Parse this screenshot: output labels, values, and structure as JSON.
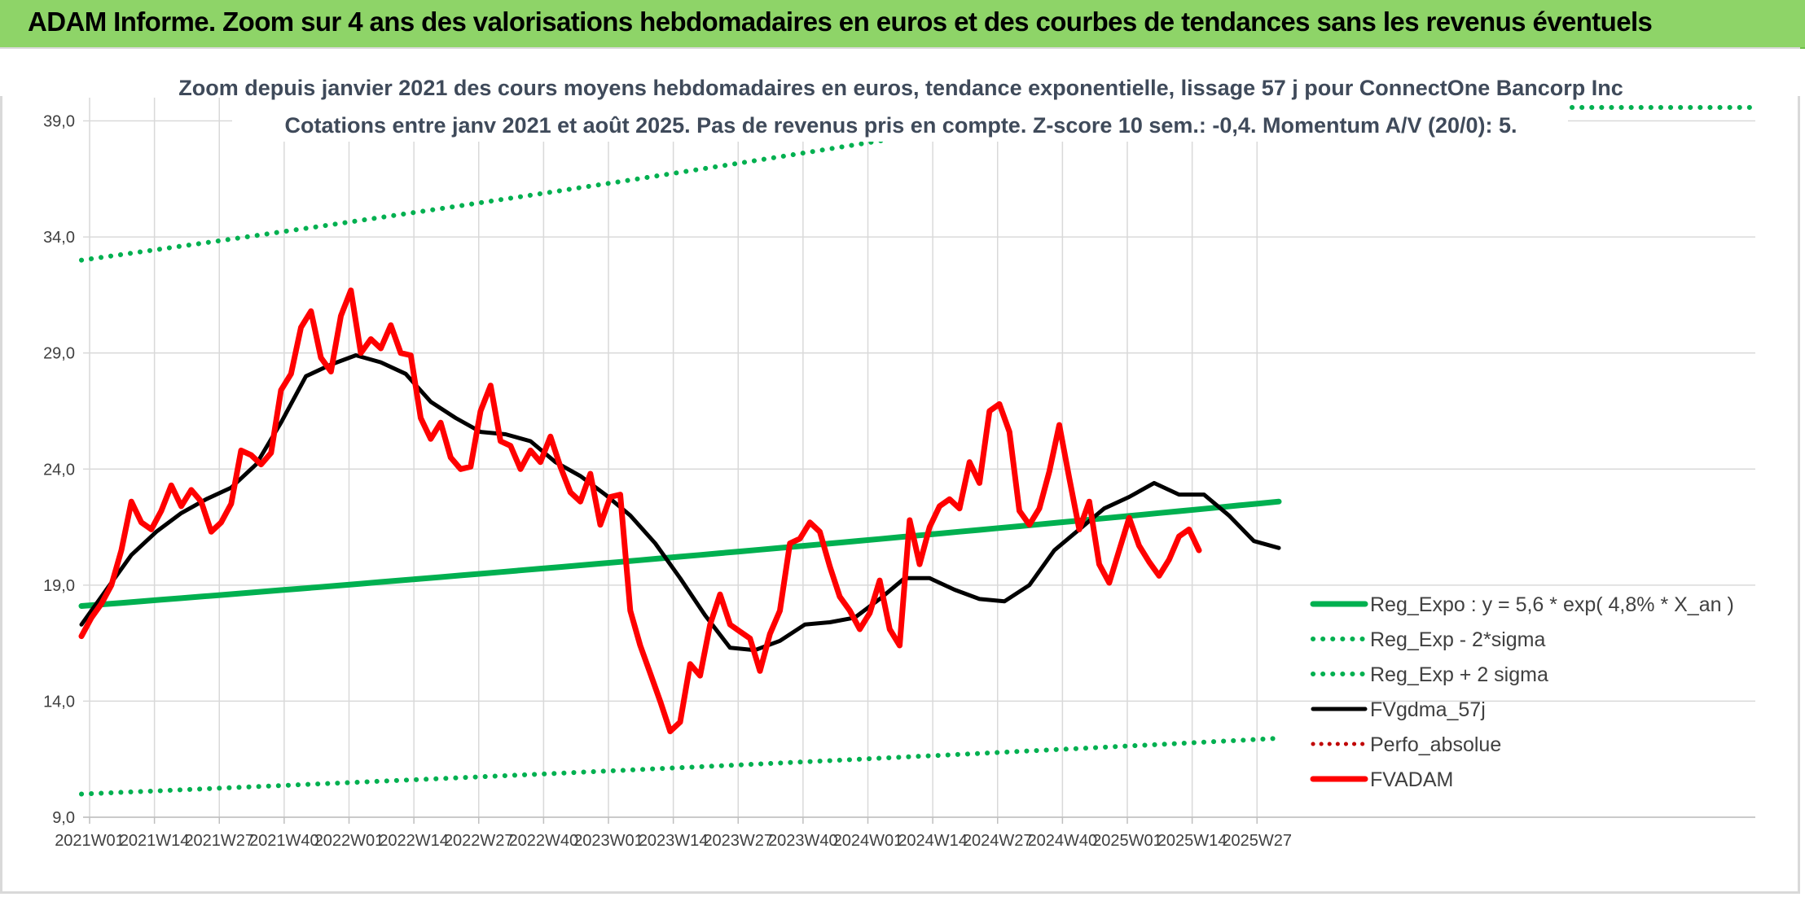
{
  "banner": {
    "title": "ADAM Informe. Zoom sur 4 ans des valorisations hebdomadaires en euros et des courbes de tendances sans les revenus éventuels"
  },
  "chart_data": {
    "type": "line",
    "title_line1": "Zoom depuis janvier 2021 des cours moyens hebdomadaires en euros, tendance exponentielle, lissage 57 j pour ConnectOne Bancorp Inc",
    "title_line2": "Cotations entre janv 2021 et août 2025. Pas de revenus pris en compte. Z-score 10 sem.: -0,4. Momentum A/V (20/0): 5.",
    "ylim": [
      9.0,
      40.0
    ],
    "y_ticks": [
      "9,0",
      "14,0",
      "19,0",
      "24,0",
      "29,0",
      "34,0",
      "39,0"
    ],
    "y_tick_values": [
      9,
      14,
      19,
      24,
      29,
      34,
      39
    ],
    "x_ticks": [
      "2021W01",
      "2021W14",
      "2021W27",
      "2021W40",
      "2022W01",
      "2022W14",
      "2022W27",
      "2022W40",
      "2023W01",
      "2023W14",
      "2023W27",
      "2023W40",
      "2024W01",
      "2024W14",
      "2024W27",
      "2024W40",
      "2025W01",
      "2025W14",
      "2025W27"
    ],
    "grid": true,
    "legend_position": "bottom-right",
    "colors": {
      "green": "#00b050",
      "black": "#000000",
      "red": "#ff0000",
      "red_dotted": "#c00000"
    },
    "legend": [
      {
        "label": "Reg_Expo : y = 5,6 * exp( 4,8% *  X_an )",
        "style": "solid-green"
      },
      {
        "label": "Reg_Exp - 2*sigma",
        "style": "dotted-green"
      },
      {
        "label": "Reg_Exp + 2 sigma",
        "style": "dotted-green"
      },
      {
        "label": "FVgdma_57j",
        "style": "solid-black"
      },
      {
        "label": "Perfo_absolue",
        "style": "dotted-red"
      },
      {
        "label": "FVADAM",
        "style": "solid-red"
      }
    ],
    "series": [
      {
        "name": "Reg_Expo : y = 5,6 * exp( 4,8% *  X_an )",
        "x_week_index": [
          0,
          240
        ],
        "values": [
          18.1,
          22.6
        ]
      },
      {
        "name": "Reg_Exp - 2*sigma",
        "x_week_index": [
          0,
          240
        ],
        "values": [
          10.0,
          12.4
        ]
      },
      {
        "name": "Reg_Exp + 2 sigma",
        "x_week_index": [
          0,
          240
        ],
        "values": [
          33.0,
          41.0
        ]
      },
      {
        "name": "FVgdma_57j",
        "x_week_index": [
          0,
          5,
          10,
          15,
          20,
          25,
          30,
          35,
          40,
          45,
          50,
          55,
          60,
          65,
          70,
          75,
          80,
          85,
          90,
          95,
          100,
          105,
          110,
          115,
          120,
          125,
          130,
          135,
          140,
          145,
          150,
          155,
          160,
          165,
          170,
          175,
          180,
          185,
          190,
          195,
          200,
          205,
          210,
          215,
          220,
          225,
          230,
          235,
          240
        ],
        "values": [
          17.3,
          18.8,
          20.3,
          21.3,
          22.1,
          22.7,
          23.2,
          24.2,
          26.0,
          28.0,
          28.5,
          28.9,
          28.6,
          28.1,
          26.9,
          26.2,
          25.6,
          25.5,
          25.2,
          24.3,
          23.7,
          22.9,
          22.0,
          20.8,
          19.3,
          17.7,
          16.3,
          16.2,
          16.6,
          17.3,
          17.4,
          17.6,
          18.4,
          19.3,
          19.3,
          18.8,
          18.4,
          18.3,
          19.0,
          20.5,
          21.4,
          22.3,
          22.8,
          23.4,
          22.9,
          22.9,
          22.0,
          20.9,
          20.6
        ]
      },
      {
        "name": "FVADAM",
        "x_week_index": [
          0,
          2,
          4,
          6,
          8,
          10,
          12,
          14,
          16,
          18,
          20,
          22,
          24,
          26,
          28,
          30,
          32,
          34,
          36,
          38,
          40,
          42,
          44,
          46,
          48,
          50,
          52,
          54,
          56,
          58,
          60,
          62,
          64,
          66,
          68,
          70,
          72,
          74,
          76,
          78,
          80,
          82,
          84,
          86,
          88,
          90,
          92,
          94,
          96,
          98,
          100,
          102,
          104,
          106,
          108,
          110,
          112,
          114,
          116,
          118,
          120,
          122,
          124,
          126,
          128,
          130,
          132,
          134,
          136,
          138,
          140,
          142,
          144,
          146,
          148,
          150,
          152,
          154,
          156,
          158,
          160,
          162,
          164,
          166,
          168,
          170,
          172,
          174,
          176,
          178,
          180,
          182,
          184,
          186,
          188,
          190,
          192,
          194,
          196,
          198,
          200,
          202,
          204,
          206,
          208,
          210,
          212,
          214,
          216,
          218,
          220,
          222,
          224,
          226,
          228,
          230,
          232,
          234,
          236,
          238,
          240
        ],
        "values": [
          16.8,
          17.6,
          18.2,
          19.0,
          20.5,
          22.6,
          21.7,
          21.4,
          22.2,
          23.3,
          22.4,
          23.1,
          22.6,
          21.3,
          21.7,
          22.5,
          24.8,
          24.6,
          24.2,
          24.7,
          27.4,
          28.1,
          30.1,
          30.8,
          28.8,
          28.2,
          30.6,
          31.7,
          29.0,
          29.6,
          29.2,
          30.2,
          29.0,
          28.9,
          26.2,
          25.3,
          26.0,
          24.5,
          24.0,
          24.1,
          26.5,
          27.6,
          25.2,
          25.0,
          24.0,
          24.8,
          24.3,
          25.4,
          24.1,
          23.0,
          22.6,
          23.8,
          21.6,
          22.8,
          22.9,
          17.9,
          16.4,
          15.2,
          14.0,
          12.7,
          13.1,
          15.6,
          15.1,
          17.3,
          18.6,
          17.3,
          17.0,
          16.7,
          15.3,
          16.9,
          17.9,
          20.8,
          21.0,
          21.7,
          21.3,
          19.8,
          18.5,
          17.9,
          17.1,
          17.8,
          19.2,
          17.1,
          16.4,
          21.8,
          19.9,
          21.5,
          22.4,
          22.7,
          22.3,
          24.3,
          23.4,
          26.5,
          26.8,
          25.6,
          22.2,
          21.6,
          22.3,
          23.9,
          25.9,
          23.6,
          21.4,
          22.6,
          19.9,
          19.1,
          20.5,
          21.9,
          20.7,
          20.0,
          19.4,
          20.1,
          21.1,
          21.4,
          20.5
        ]
      }
    ]
  }
}
